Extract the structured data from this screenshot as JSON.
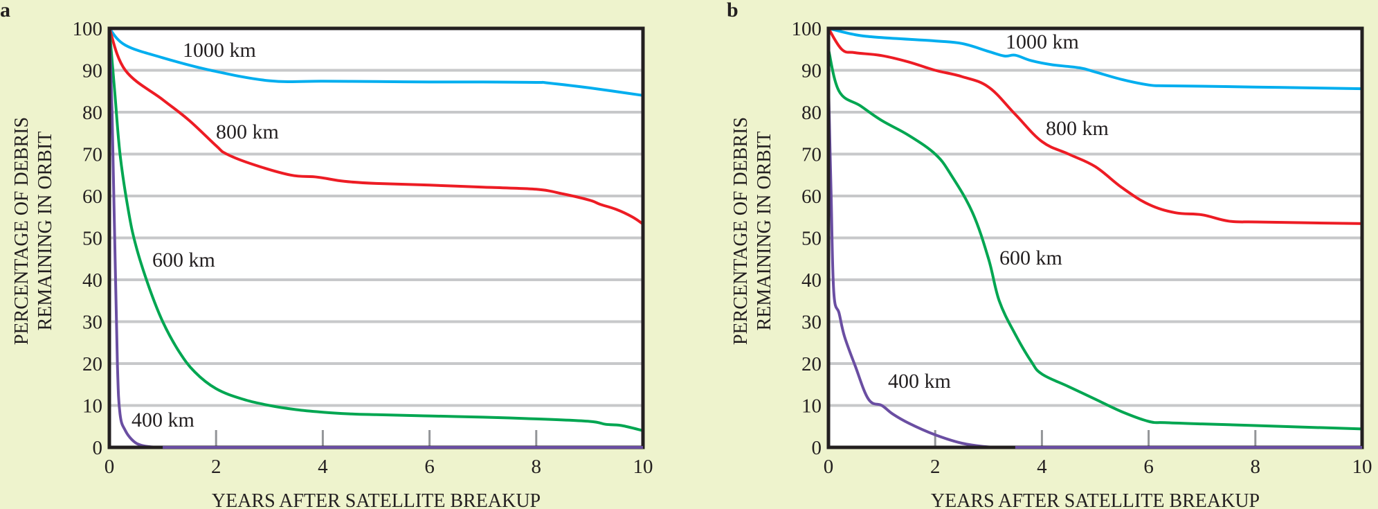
{
  "chart_data": [
    {
      "panel": "a",
      "type": "line",
      "xlabel": "YEARS AFTER SATELLITE BREAKUP",
      "ylabel_lines": [
        "PERCENTAGE OF DEBRIS",
        "REMAINING IN ORBIT"
      ],
      "xlim": [
        0,
        10
      ],
      "ylim": [
        0,
        100
      ],
      "xticks": [
        0,
        2,
        4,
        6,
        8,
        10
      ],
      "yticks": [
        0,
        10,
        20,
        30,
        40,
        50,
        60,
        70,
        80,
        90,
        100
      ],
      "grid": "horizontal",
      "series": [
        {
          "name": "1000 km",
          "label": "1000 km",
          "color": "#00aeef",
          "x": [
            0,
            0.3,
            1,
            1.9,
            3,
            4,
            5,
            6,
            7,
            8,
            8.2,
            9,
            10
          ],
          "y": [
            100,
            96,
            93,
            90,
            87.5,
            87.4,
            87.3,
            87.2,
            87.2,
            87.1,
            87,
            85.8,
            84
          ]
        },
        {
          "name": "800 km",
          "label": "800 km",
          "color": "#ed1c24",
          "x": [
            0,
            0.3,
            1,
            1.5,
            2,
            2.2,
            2.7,
            3.4,
            3.9,
            4.4,
            5,
            6,
            7,
            8,
            8.5,
            9,
            9.2,
            9.5,
            9.8,
            10
          ],
          "y": [
            100,
            90,
            83,
            78,
            72,
            70,
            67.5,
            65,
            64.5,
            63.5,
            63,
            62.6,
            62.1,
            61.6,
            60.5,
            59,
            58,
            56.8,
            55,
            53.3
          ]
        },
        {
          "name": "600 km",
          "label": "600 km",
          "color": "#00a651",
          "x": [
            0,
            0.1,
            0.2,
            0.35,
            0.5,
            0.75,
            1,
            1.3,
            1.6,
            2,
            2.5,
            3,
            3.5,
            4,
            4.5,
            5,
            6,
            7,
            8,
            9,
            9.3,
            9.6,
            10
          ],
          "y": [
            100,
            85,
            70,
            57,
            48,
            38,
            30,
            23,
            18,
            14,
            11.5,
            10,
            9,
            8.4,
            8,
            7.8,
            7.5,
            7.2,
            6.8,
            6.2,
            5.5,
            5.2,
            4
          ]
        },
        {
          "name": "400 km",
          "label": "400 km",
          "color": "#6a4ea2",
          "x": [
            0,
            0.05,
            0.1,
            0.15,
            0.2,
            0.3,
            0.45,
            0.6,
            0.8,
            1,
            2,
            4,
            6,
            8,
            10
          ],
          "y": [
            100,
            80,
            50,
            20,
            8,
            4,
            1.5,
            0.5,
            0.1,
            0,
            0,
            0,
            0,
            0,
            0
          ]
        }
      ]
    },
    {
      "panel": "b",
      "type": "line",
      "xlabel": "YEARS AFTER SATELLITE BREAKUP",
      "ylabel_lines": [
        "PERCENTAGE OF DEBRIS",
        "REMAINING IN ORBIT"
      ],
      "xlim": [
        0,
        10
      ],
      "ylim": [
        0,
        100
      ],
      "xticks": [
        0,
        2,
        4,
        6,
        8,
        10
      ],
      "yticks": [
        0,
        10,
        20,
        30,
        40,
        50,
        60,
        70,
        80,
        90,
        100
      ],
      "grid": "horizontal",
      "series": [
        {
          "name": "1000 km",
          "label": "1000 km",
          "color": "#00aeef",
          "x": [
            0,
            0.5,
            1,
            2,
            2.5,
            3,
            3.3,
            3.5,
            3.8,
            4.2,
            4.7,
            5,
            5.5,
            6,
            6.3,
            7,
            8,
            9,
            10
          ],
          "y": [
            100,
            98.5,
            97.8,
            97,
            96.4,
            94.5,
            93.4,
            93.6,
            92.3,
            91.3,
            90.6,
            89.6,
            87.8,
            86.5,
            86.3,
            86.2,
            86,
            85.8,
            85.6
          ]
        },
        {
          "name": "800 km",
          "label": "800 km",
          "color": "#ed1c24",
          "x": [
            0,
            0.25,
            0.5,
            1,
            1.5,
            2,
            2.5,
            3,
            3.5,
            4,
            4.5,
            5,
            5.5,
            6,
            6.5,
            7,
            7.5,
            8,
            9,
            10
          ],
          "y": [
            100,
            95,
            94.2,
            93.5,
            92,
            90,
            88.5,
            86,
            79.5,
            73,
            70,
            67,
            62,
            58,
            56,
            55.5,
            54,
            53.8,
            53.6,
            53.4
          ]
        },
        {
          "name": "600 km",
          "label": "600 km",
          "color": "#00a651",
          "x": [
            0,
            0.2,
            0.6,
            1,
            1.5,
            2,
            2.3,
            2.7,
            3,
            3.2,
            3.5,
            3.8,
            4,
            4.5,
            5,
            5.5,
            6,
            6.3,
            7,
            8,
            9,
            10
          ],
          "y": [
            95,
            85,
            81.5,
            78,
            74.5,
            70,
            65,
            56,
            45,
            35,
            27,
            20.5,
            17.5,
            14.5,
            11.5,
            8.5,
            6.2,
            5.9,
            5.6,
            5.2,
            4.8,
            4.4
          ]
        },
        {
          "name": "400 km",
          "label": "400 km",
          "color": "#6a4ea2",
          "x": [
            0,
            0.05,
            0.1,
            0.2,
            0.3,
            0.5,
            0.75,
            1,
            1.2,
            1.5,
            2,
            2.5,
            3,
            3.5,
            4,
            6,
            8,
            10
          ],
          "y": [
            87,
            60,
            37,
            32,
            26.5,
            19.5,
            11.5,
            10,
            8,
            5.8,
            3,
            1,
            0.1,
            0,
            0,
            0,
            0,
            0
          ]
        }
      ]
    }
  ]
}
